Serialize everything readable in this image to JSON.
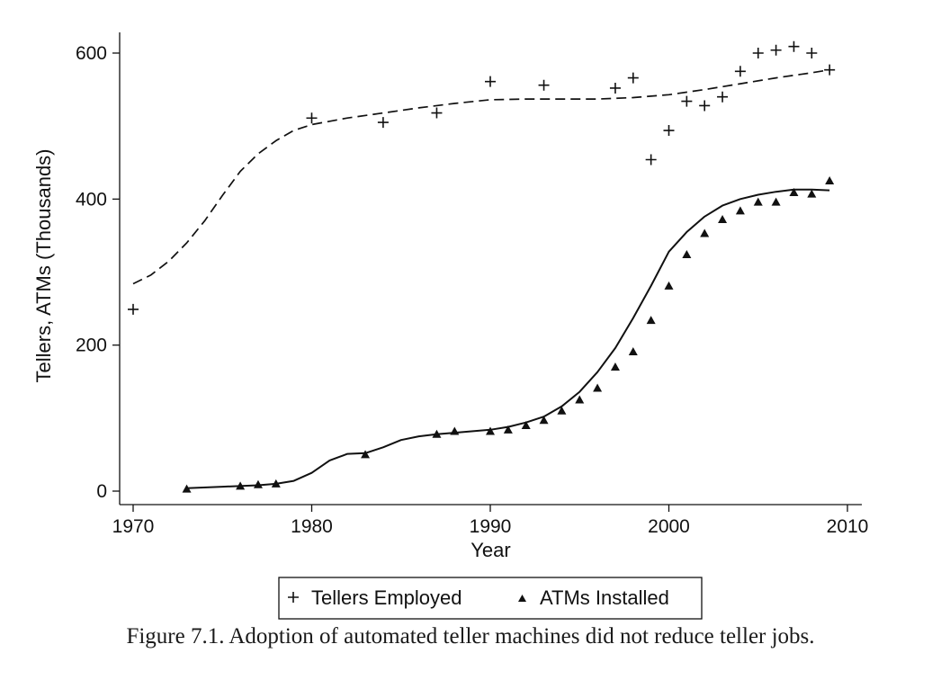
{
  "chart_data": {
    "type": "line",
    "xlabel": "Year",
    "ylabel": "Tellers, ATMs (Thousands)",
    "xlim": [
      1970,
      2011
    ],
    "ylim": [
      -15,
      625
    ],
    "x_ticks": [
      1970,
      1980,
      1990,
      2000,
      2010
    ],
    "y_ticks": [
      0,
      200,
      400,
      600
    ],
    "grid": false,
    "legend_position": "bottom",
    "series": [
      {
        "name": "Tellers Employed",
        "kind": "scatter",
        "marker": "plus",
        "points": [
          [
            1970,
            249
          ],
          [
            1980,
            511
          ],
          [
            1984,
            505
          ],
          [
            1987,
            518
          ],
          [
            1990,
            561
          ],
          [
            1993,
            556
          ],
          [
            1997,
            552
          ],
          [
            1998,
            566
          ],
          [
            1999,
            454
          ],
          [
            2000,
            494
          ],
          [
            2001,
            534
          ],
          [
            2002,
            528
          ],
          [
            2003,
            540
          ],
          [
            2004,
            575
          ],
          [
            2005,
            600
          ],
          [
            2006,
            604
          ],
          [
            2007,
            609
          ],
          [
            2008,
            600
          ],
          [
            2009,
            577
          ]
        ]
      },
      {
        "name": "Tellers Employed (smoothed)",
        "kind": "line",
        "style": "dashed",
        "points": [
          [
            1970,
            284
          ],
          [
            1971,
            296
          ],
          [
            1972,
            315
          ],
          [
            1973,
            340
          ],
          [
            1974,
            370
          ],
          [
            1975,
            405
          ],
          [
            1976,
            438
          ],
          [
            1977,
            462
          ],
          [
            1978,
            480
          ],
          [
            1979,
            494
          ],
          [
            1980,
            502
          ],
          [
            1982,
            511
          ],
          [
            1984,
            518
          ],
          [
            1986,
            525
          ],
          [
            1988,
            531
          ],
          [
            1990,
            536
          ],
          [
            1992,
            537
          ],
          [
            1994,
            537
          ],
          [
            1996,
            537
          ],
          [
            1998,
            539
          ],
          [
            2000,
            543
          ],
          [
            2002,
            550
          ],
          [
            2004,
            558
          ],
          [
            2006,
            566
          ],
          [
            2008,
            573
          ],
          [
            2009,
            577
          ]
        ]
      },
      {
        "name": "ATMs Installed",
        "kind": "scatter",
        "marker": "triangle",
        "points": [
          [
            1973,
            3
          ],
          [
            1976,
            7
          ],
          [
            1977,
            9
          ],
          [
            1978,
            10
          ],
          [
            1983,
            50
          ],
          [
            1987,
            78
          ],
          [
            1988,
            82
          ],
          [
            1990,
            82
          ],
          [
            1991,
            84
          ],
          [
            1992,
            90
          ],
          [
            1993,
            97
          ],
          [
            1994,
            110
          ],
          [
            1995,
            125
          ],
          [
            1996,
            141
          ],
          [
            1997,
            170
          ],
          [
            1998,
            191
          ],
          [
            1999,
            234
          ],
          [
            2000,
            281
          ],
          [
            2001,
            324
          ],
          [
            2002,
            353
          ],
          [
            2003,
            372
          ],
          [
            2004,
            384
          ],
          [
            2005,
            396
          ],
          [
            2006,
            396
          ],
          [
            2007,
            409
          ],
          [
            2008,
            407
          ],
          [
            2009,
            425
          ]
        ]
      },
      {
        "name": "ATMs Installed (smoothed)",
        "kind": "line",
        "style": "solid",
        "points": [
          [
            1973,
            4
          ],
          [
            1975,
            6
          ],
          [
            1977,
            8
          ],
          [
            1978,
            10
          ],
          [
            1979,
            14
          ],
          [
            1980,
            25
          ],
          [
            1981,
            42
          ],
          [
            1982,
            51
          ],
          [
            1983,
            52
          ],
          [
            1984,
            60
          ],
          [
            1985,
            70
          ],
          [
            1986,
            75
          ],
          [
            1987,
            78
          ],
          [
            1988,
            80
          ],
          [
            1990,
            84
          ],
          [
            1991,
            88
          ],
          [
            1992,
            94
          ],
          [
            1993,
            102
          ],
          [
            1994,
            116
          ],
          [
            1995,
            136
          ],
          [
            1996,
            163
          ],
          [
            1997,
            196
          ],
          [
            1998,
            237
          ],
          [
            1999,
            281
          ],
          [
            2000,
            328
          ],
          [
            2001,
            355
          ],
          [
            2002,
            376
          ],
          [
            2003,
            391
          ],
          [
            2004,
            400
          ],
          [
            2005,
            406
          ],
          [
            2006,
            410
          ],
          [
            2007,
            413
          ],
          [
            2008,
            413
          ],
          [
            2009,
            412
          ]
        ]
      }
    ],
    "legend": [
      {
        "label": "Tellers Employed",
        "marker": "plus"
      },
      {
        "label": "ATMs Installed",
        "marker": "triangle"
      }
    ]
  },
  "caption": "Figure 7.1. Adoption of automated teller machines did not reduce teller jobs."
}
